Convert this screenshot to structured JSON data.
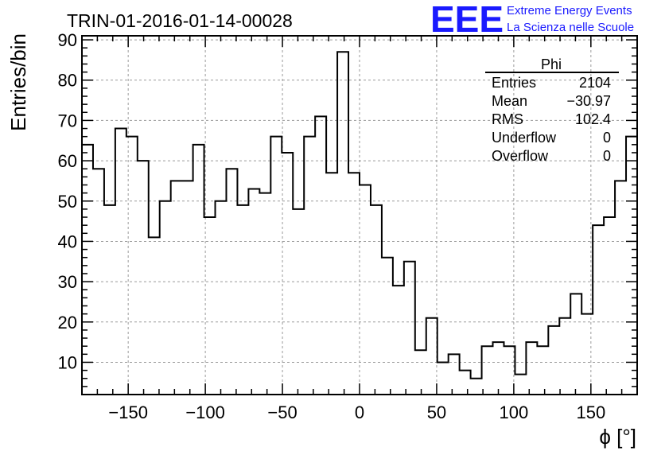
{
  "chart_data": {
    "type": "bar",
    "title": "TRIN-01-2016-01-14-00028",
    "xlabel": "ϕ [°]",
    "ylabel": "Entries/bin",
    "xlim": [
      -180,
      180
    ],
    "ylim": [
      2,
      91
    ],
    "bin_width": 7.2,
    "x_ticks": [
      -150,
      -100,
      -50,
      0,
      50,
      100,
      150
    ],
    "y_ticks": [
      10,
      20,
      30,
      40,
      50,
      60,
      70,
      80,
      90
    ],
    "grid": true,
    "values": [
      64,
      58,
      49,
      68,
      66,
      60,
      41,
      50,
      55,
      55,
      64,
      46,
      50,
      58,
      49,
      53,
      52,
      66,
      62,
      48,
      66,
      71,
      57,
      87,
      57,
      54,
      49,
      36,
      29,
      35,
      13,
      21,
      10,
      12,
      8,
      6,
      14,
      15,
      14,
      7,
      15,
      14,
      19,
      21,
      27,
      22,
      44,
      46,
      55,
      66
    ],
    "series": [
      {
        "name": "Phi"
      }
    ],
    "stats_box": {
      "title": "Phi",
      "rows": [
        {
          "label": "Entries",
          "value": "2104"
        },
        {
          "label": "Mean",
          "value": "−30.97"
        },
        {
          "label": "RMS",
          "value": "102.4"
        },
        {
          "label": "Underflow",
          "value": "0"
        },
        {
          "label": "Overflow",
          "value": "0"
        }
      ]
    },
    "line_color": "#000000",
    "grid_color": "#9a9a9a"
  },
  "logo": {
    "mark": "EEE",
    "line1": "Extreme Energy Events",
    "line2": "La Scienza nelle Scuole",
    "color": "#1a1aff"
  }
}
